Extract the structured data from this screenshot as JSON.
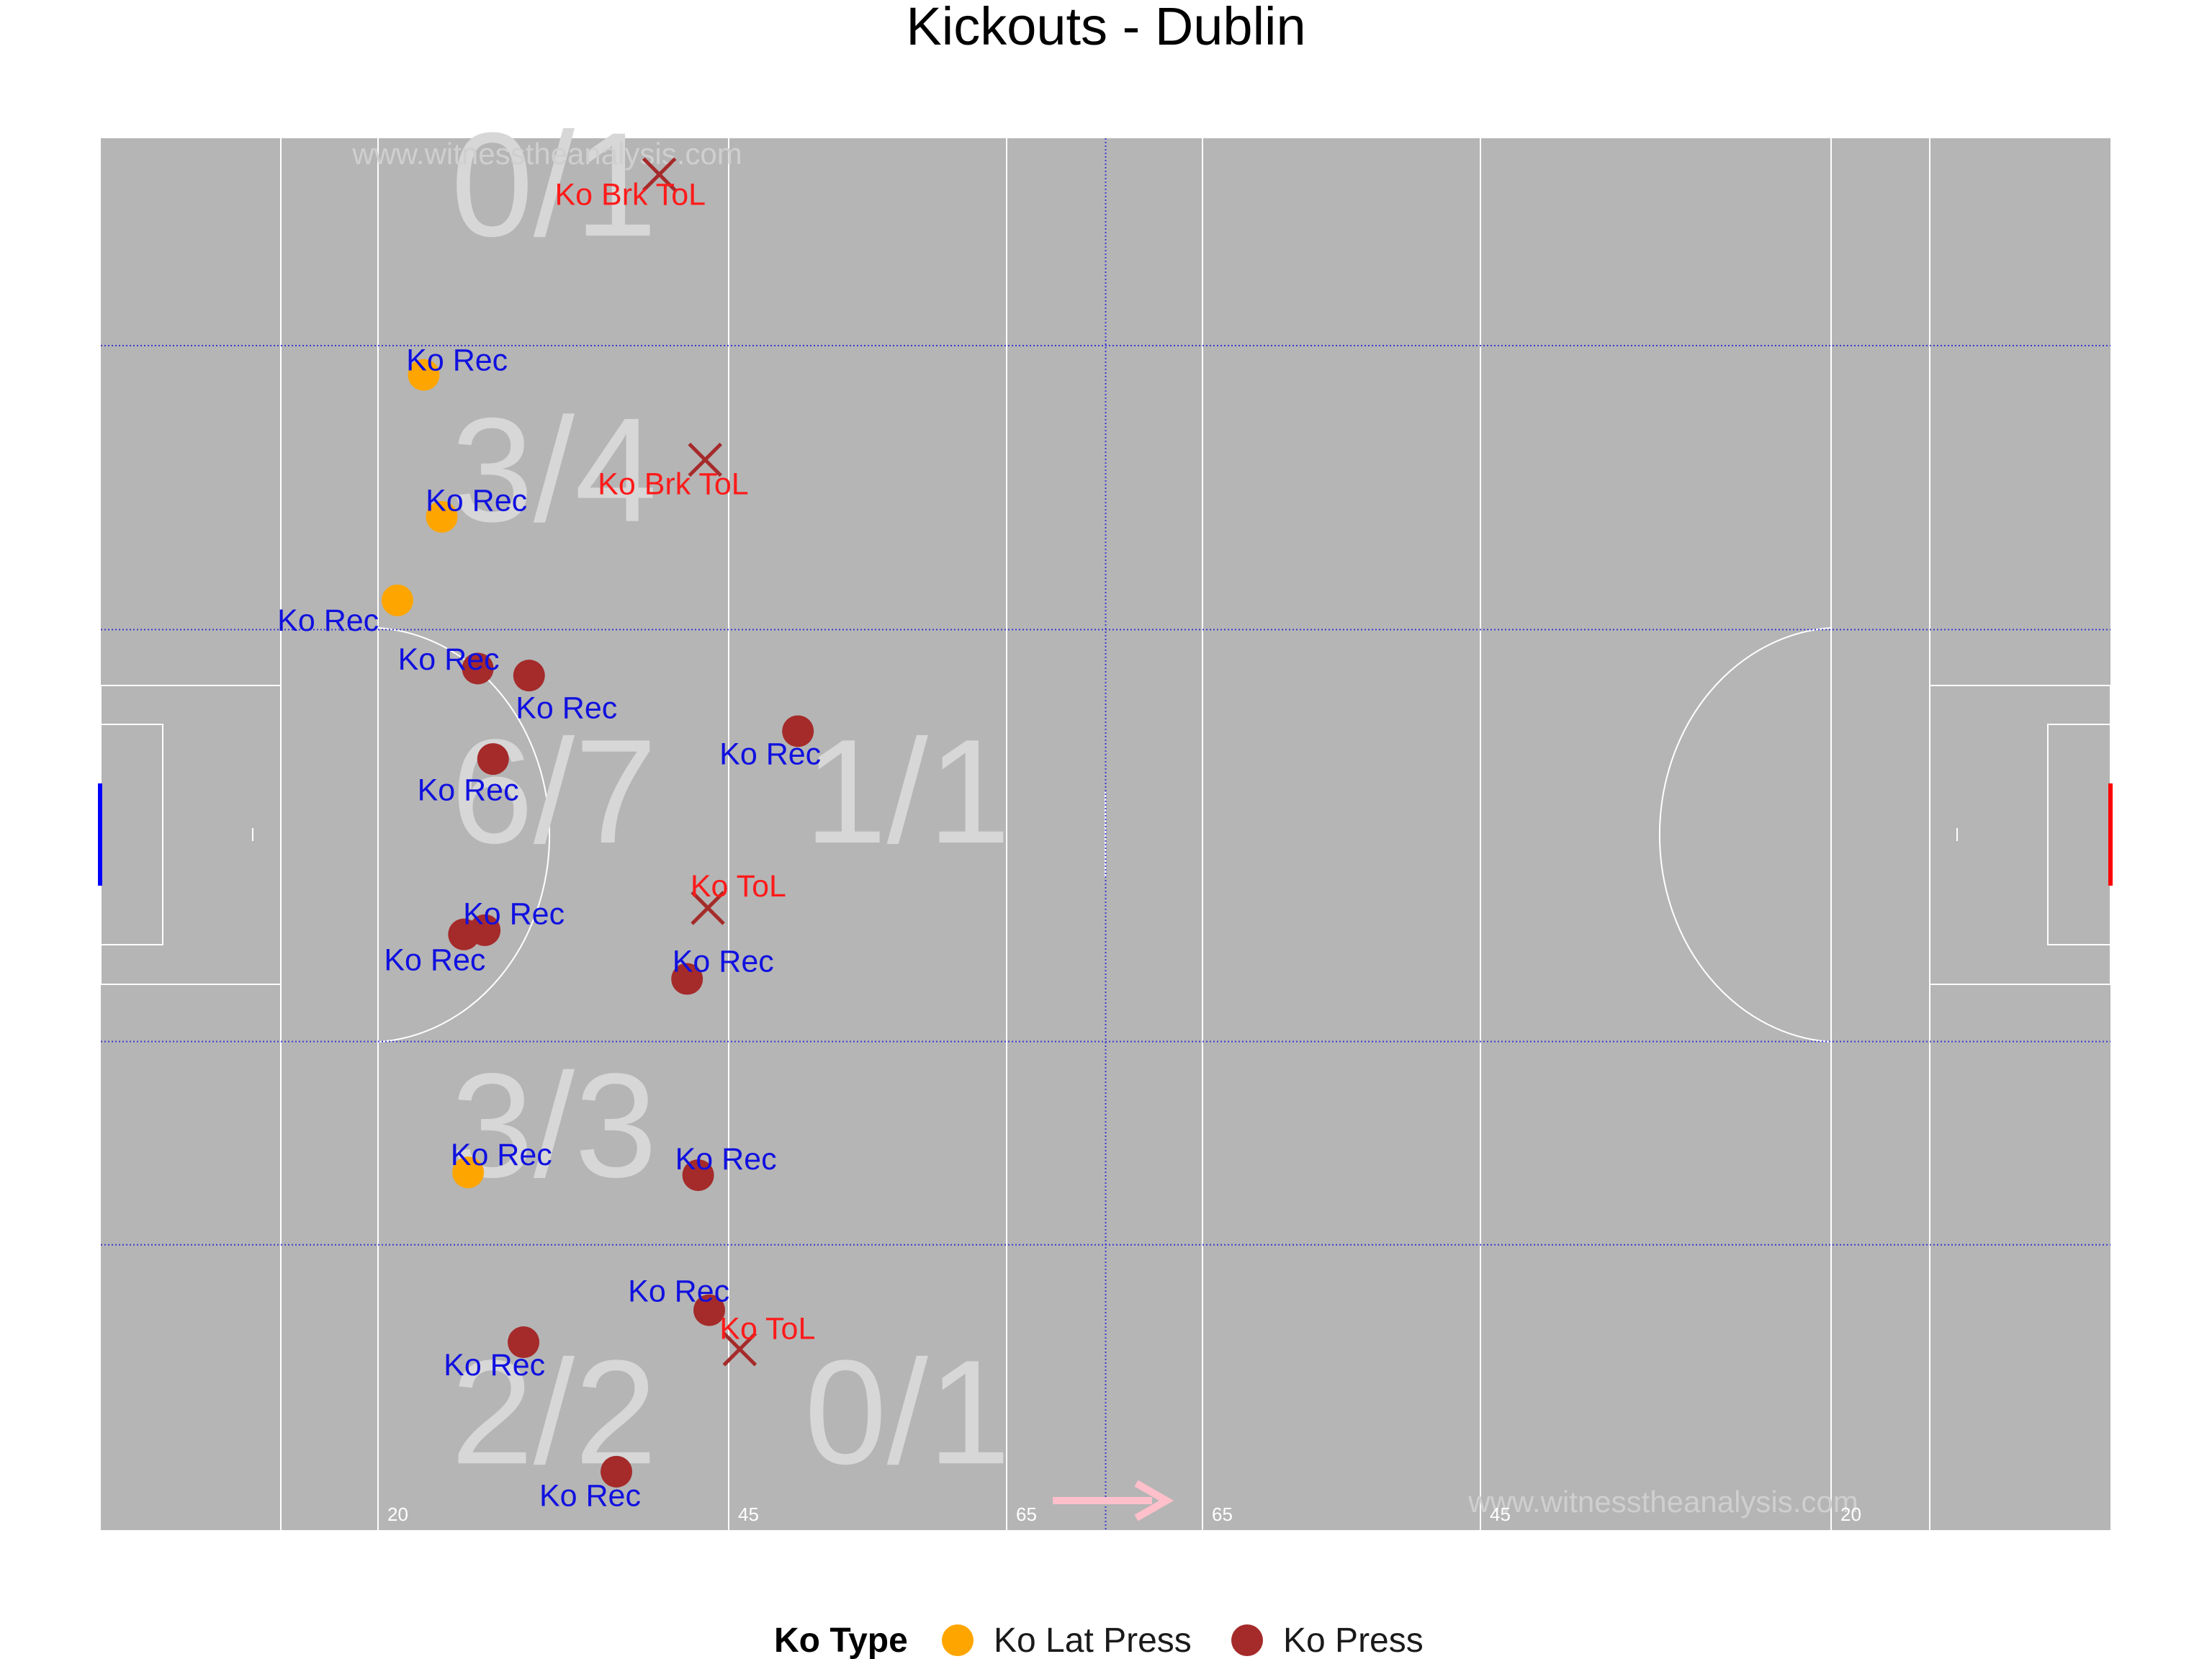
{
  "page": {
    "title": "Kickouts - Dublin",
    "watermark": "www.witnesstheanalysis.com"
  },
  "colors": {
    "pitch": "#b5b5b5",
    "lines": "#ffffff",
    "zone_divider": "#3a3acf",
    "zone_stat": "#d7d7d7",
    "rec_label": "#1010e0",
    "loss_label": "#ff1a1a",
    "ko_lat_press": "#ffa500",
    "ko_press": "#a52a2a",
    "loss_marker": "#a52a2a",
    "left_goal": "#0000ff",
    "right_goal": "#ff0000",
    "direction_arrow": "#ffc0cb"
  },
  "distance_markers": [
    "20",
    "45",
    "65",
    "65",
    "45",
    "20"
  ],
  "chart_data": {
    "type": "scatter",
    "title": "Kickouts - Dublin",
    "x_range": [
      0,
      145
    ],
    "y_range": [
      0,
      100
    ],
    "grid": false,
    "legend": {
      "position": "bottom",
      "title": "Ko Type",
      "entries": [
        {
          "name": "Ko Lat Press",
          "color": "#ffa500"
        },
        {
          "name": "Ko Press",
          "color": "#a52a2a"
        }
      ]
    },
    "zone_lines_y": [
      20.5,
      35.1,
      64.7,
      85.1
    ],
    "zone_lines_x": [
      72.5
    ],
    "zone_stats": [
      {
        "text": "0/1",
        "x": 32.7,
        "y": 93.0
      },
      {
        "text": "3/4",
        "x": 32.7,
        "y": 72.5
      },
      {
        "text": "6/7",
        "x": 32.7,
        "y": 49.4
      },
      {
        "text": "1/1",
        "x": 58.2,
        "y": 49.4
      },
      {
        "text": "3/3",
        "x": 32.7,
        "y": 25.4
      },
      {
        "text": "2/2",
        "x": 32.7,
        "y": 4.8
      },
      {
        "text": "0/1",
        "x": 58.2,
        "y": 4.8
      }
    ],
    "points": [
      {
        "x": 23.3,
        "y": 83.0,
        "type": "Ko Lat Press",
        "outcome": "won",
        "label": "Ko Rec",
        "lx": 25.7,
        "ly": 84.1
      },
      {
        "x": 24.6,
        "y": 72.8,
        "type": "Ko Lat Press",
        "outcome": "won",
        "label": "Ko Rec",
        "lx": 27.1,
        "ly": 74.0
      },
      {
        "x": 21.4,
        "y": 66.8,
        "type": "Ko Lat Press",
        "outcome": "won",
        "label": "Ko Rec",
        "lx": 16.4,
        "ly": 65.4
      },
      {
        "x": 27.2,
        "y": 61.9,
        "type": "Ko Press",
        "outcome": "won",
        "label": "Ko Rec",
        "lx": 25.1,
        "ly": 62.6
      },
      {
        "x": 30.9,
        "y": 61.4,
        "type": "Ko Press",
        "outcome": "won",
        "label": "Ko Rec",
        "lx": 33.6,
        "ly": 59.1
      },
      {
        "x": 50.3,
        "y": 57.4,
        "type": "Ko Press",
        "outcome": "won",
        "label": "Ko Rec",
        "lx": 48.3,
        "ly": 55.8
      },
      {
        "x": 28.3,
        "y": 55.4,
        "type": "Ko Press",
        "outcome": "won",
        "label": "Ko Rec",
        "lx": 26.5,
        "ly": 53.2
      },
      {
        "x": 26.2,
        "y": 42.8,
        "type": "Ko Press",
        "outcome": "won",
        "label": "Ko Rec",
        "lx": 24.1,
        "ly": 41.0
      },
      {
        "x": 27.7,
        "y": 43.1,
        "type": "Ko Press",
        "outcome": "won",
        "label": "Ko Rec",
        "lx": 29.8,
        "ly": 44.3
      },
      {
        "x": 42.3,
        "y": 39.6,
        "type": "Ko Press",
        "outcome": "won",
        "label": "Ko Rec",
        "lx": 44.9,
        "ly": 40.9
      },
      {
        "x": 26.5,
        "y": 25.7,
        "type": "Ko Lat Press",
        "outcome": "won",
        "label": "Ko Rec",
        "lx": 28.9,
        "ly": 27.0
      },
      {
        "x": 43.1,
        "y": 25.5,
        "type": "Ko Press",
        "outcome": "won",
        "label": "Ko Rec",
        "lx": 45.1,
        "ly": 26.7
      },
      {
        "x": 43.9,
        "y": 15.8,
        "type": "Ko Press",
        "outcome": "won",
        "label": "Ko Rec",
        "lx": 41.7,
        "ly": 17.2
      },
      {
        "x": 30.5,
        "y": 13.5,
        "type": "Ko Press",
        "outcome": "won",
        "label": "Ko Rec",
        "lx": 28.4,
        "ly": 11.9
      },
      {
        "x": 37.2,
        "y": 4.2,
        "type": "Ko Press",
        "outcome": "won",
        "label": "Ko Rec",
        "lx": 35.3,
        "ly": 2.5
      },
      {
        "x": 40.3,
        "y": 97.4,
        "type": "Ko Press",
        "outcome": "lost",
        "label": "Ko Brk ToL",
        "lx": 38.2,
        "ly": 96.0
      },
      {
        "x": 43.6,
        "y": 76.9,
        "type": "Ko Press",
        "outcome": "lost",
        "label": "Ko Brk ToL",
        "lx": 41.3,
        "ly": 75.2
      },
      {
        "x": 43.8,
        "y": 44.7,
        "type": "Ko Press",
        "outcome": "lost",
        "label": "Ko ToL",
        "lx": 46.0,
        "ly": 46.3
      },
      {
        "x": 46.1,
        "y": 13.0,
        "type": "Ko Press",
        "outcome": "lost",
        "label": "Ko ToL",
        "lx": 48.1,
        "ly": 14.5
      }
    ]
  }
}
